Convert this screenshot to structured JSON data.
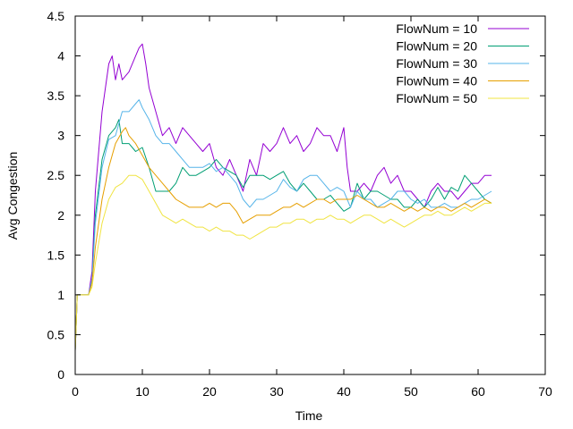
{
  "chart_data": {
    "type": "line",
    "title": "",
    "xlabel": "Time",
    "ylabel": "Avg Congestion",
    "xlim": [
      0,
      70
    ],
    "ylim": [
      0,
      4.5
    ],
    "x_ticks": [
      0,
      10,
      20,
      30,
      40,
      50,
      60,
      70
    ],
    "y_ticks": [
      0,
      0.5,
      1,
      1.5,
      2,
      2.5,
      3,
      3.5,
      4,
      4.5
    ],
    "x_tick_labels": [
      "0",
      "10",
      "20",
      "30",
      "40",
      "50",
      "60",
      "70"
    ],
    "y_tick_labels": [
      "0",
      "0.5",
      "1",
      "1.5",
      "2",
      "2.5",
      "3",
      "3.5",
      "4",
      "4.5"
    ],
    "grid": false,
    "legend_position": "top-right",
    "series": [
      {
        "name": "FlowNum = 10",
        "color": "#9400d3",
        "x": [
          0,
          0.3,
          2,
          2.5,
          3,
          4,
          5,
          5.5,
          6,
          6.5,
          7,
          8,
          9,
          9.5,
          10,
          10.5,
          11,
          12,
          13,
          14,
          15,
          16,
          17,
          18,
          19,
          20,
          21,
          22,
          23,
          24,
          25,
          26,
          27,
          28,
          29,
          30,
          31,
          32,
          33,
          34,
          35,
          36,
          37,
          38,
          39,
          40,
          40.5,
          41,
          42,
          43,
          44,
          45,
          46,
          47,
          48,
          49,
          50,
          51,
          52,
          53,
          54,
          55,
          56,
          57,
          58,
          59,
          60,
          61,
          62
        ],
        "y": [
          0.3,
          1.0,
          1.0,
          1.3,
          2.3,
          3.3,
          3.9,
          4.0,
          3.7,
          3.9,
          3.7,
          3.8,
          4.0,
          4.1,
          4.15,
          3.9,
          3.6,
          3.3,
          3.0,
          3.1,
          2.9,
          3.1,
          3.0,
          2.9,
          2.8,
          2.9,
          2.6,
          2.5,
          2.7,
          2.5,
          2.3,
          2.7,
          2.5,
          2.9,
          2.8,
          2.9,
          3.1,
          2.9,
          3.0,
          2.8,
          2.9,
          3.1,
          3.0,
          3.0,
          2.8,
          3.1,
          2.6,
          2.3,
          2.3,
          2.4,
          2.3,
          2.5,
          2.6,
          2.4,
          2.5,
          2.3,
          2.3,
          2.2,
          2.1,
          2.3,
          2.4,
          2.3,
          2.3,
          2.2,
          2.3,
          2.4,
          2.4,
          2.5,
          2.5
        ]
      },
      {
        "name": "FlowNum = 20",
        "color": "#009e73",
        "x": [
          0,
          0.3,
          2,
          2.5,
          3,
          4,
          5,
          6,
          6.5,
          7,
          8,
          9,
          10,
          11,
          12,
          13,
          14,
          15,
          16,
          17,
          18,
          19,
          20,
          21,
          22,
          23,
          24,
          25,
          26,
          27,
          28,
          29,
          30,
          31,
          32,
          33,
          34,
          35,
          36,
          37,
          38,
          39,
          40,
          41,
          42,
          43,
          44,
          45,
          46,
          47,
          48,
          49,
          50,
          51,
          52,
          53,
          54,
          55,
          56,
          57,
          58,
          59,
          60,
          61,
          62
        ],
        "y": [
          0.3,
          1.0,
          1.0,
          1.2,
          2.0,
          2.7,
          3.0,
          3.1,
          3.2,
          2.9,
          2.9,
          2.8,
          2.85,
          2.6,
          2.3,
          2.3,
          2.3,
          2.4,
          2.6,
          2.5,
          2.5,
          2.55,
          2.6,
          2.7,
          2.6,
          2.55,
          2.5,
          2.35,
          2.5,
          2.5,
          2.5,
          2.45,
          2.5,
          2.55,
          2.4,
          2.3,
          2.4,
          2.3,
          2.2,
          2.2,
          2.25,
          2.15,
          2.05,
          2.1,
          2.4,
          2.2,
          2.3,
          2.3,
          2.25,
          2.2,
          2.2,
          2.1,
          2.1,
          2.2,
          2.1,
          2.2,
          2.35,
          2.2,
          2.35,
          2.3,
          2.5,
          2.4,
          2.3,
          2.2,
          2.15
        ]
      },
      {
        "name": "FlowNum = 30",
        "color": "#56b4e9",
        "x": [
          0,
          0.3,
          2,
          2.5,
          3,
          4,
          5,
          6,
          7,
          8,
          9,
          9.5,
          10,
          11,
          12,
          13,
          14,
          15,
          16,
          17,
          18,
          19,
          20,
          21,
          22,
          23,
          24,
          25,
          26,
          27,
          28,
          29,
          30,
          31,
          32,
          33,
          34,
          35,
          36,
          37,
          38,
          39,
          40,
          41,
          42,
          43,
          44,
          45,
          46,
          47,
          48,
          49,
          50,
          51,
          52,
          53,
          54,
          55,
          56,
          57,
          58,
          59,
          60,
          61,
          62
        ],
        "y": [
          0.3,
          1.0,
          1.0,
          1.2,
          1.9,
          2.6,
          2.95,
          3.0,
          3.3,
          3.3,
          3.4,
          3.45,
          3.35,
          3.2,
          3.0,
          2.9,
          2.9,
          2.8,
          2.7,
          2.6,
          2.6,
          2.6,
          2.65,
          2.55,
          2.6,
          2.5,
          2.4,
          2.2,
          2.1,
          2.2,
          2.2,
          2.25,
          2.3,
          2.45,
          2.35,
          2.3,
          2.45,
          2.5,
          2.5,
          2.4,
          2.3,
          2.35,
          2.3,
          2.1,
          2.3,
          2.2,
          2.2,
          2.1,
          2.15,
          2.2,
          2.3,
          2.3,
          2.2,
          2.15,
          2.2,
          2.1,
          2.1,
          2.15,
          2.1,
          2.1,
          2.15,
          2.2,
          2.2,
          2.25,
          2.3
        ]
      },
      {
        "name": "FlowNum = 40",
        "color": "#e69f00",
        "x": [
          0,
          0.3,
          2,
          2.5,
          3,
          4,
          5,
          6,
          7,
          7.5,
          8,
          9,
          10,
          11,
          12,
          13,
          14,
          15,
          16,
          17,
          18,
          19,
          20,
          21,
          22,
          23,
          24,
          25,
          26,
          27,
          28,
          29,
          30,
          31,
          32,
          33,
          34,
          35,
          36,
          37,
          38,
          39,
          40,
          41,
          42,
          43,
          44,
          45,
          46,
          47,
          48,
          49,
          50,
          51,
          52,
          53,
          54,
          55,
          56,
          57,
          58,
          59,
          60,
          61,
          62
        ],
        "y": [
          0.3,
          1.0,
          1.0,
          1.15,
          1.6,
          2.2,
          2.6,
          2.9,
          3.05,
          3.1,
          3.0,
          2.9,
          2.75,
          2.6,
          2.5,
          2.4,
          2.3,
          2.2,
          2.15,
          2.1,
          2.1,
          2.1,
          2.15,
          2.1,
          2.15,
          2.15,
          2.05,
          1.9,
          1.95,
          2.0,
          2.0,
          2.0,
          2.05,
          2.1,
          2.1,
          2.15,
          2.1,
          2.15,
          2.2,
          2.2,
          2.15,
          2.2,
          2.2,
          2.2,
          2.25,
          2.2,
          2.15,
          2.1,
          2.1,
          2.15,
          2.1,
          2.05,
          2.1,
          2.05,
          2.1,
          2.05,
          2.1,
          2.1,
          2.05,
          2.1,
          2.15,
          2.1,
          2.15,
          2.2,
          2.15
        ]
      },
      {
        "name": "FlowNum = 50",
        "color": "#f0e442",
        "x": [
          0,
          0.3,
          2,
          2.5,
          3,
          4,
          5,
          6,
          7,
          8,
          9,
          10,
          11,
          12,
          13,
          14,
          15,
          16,
          17,
          18,
          19,
          20,
          21,
          22,
          23,
          24,
          25,
          26,
          27,
          28,
          29,
          30,
          31,
          32,
          33,
          34,
          35,
          36,
          37,
          38,
          39,
          40,
          41,
          42,
          43,
          44,
          45,
          46,
          47,
          48,
          49,
          50,
          51,
          52,
          53,
          54,
          55,
          56,
          57,
          58,
          59,
          60,
          61,
          62
        ],
        "y": [
          0.3,
          1.0,
          1.0,
          1.1,
          1.4,
          1.9,
          2.2,
          2.35,
          2.4,
          2.5,
          2.5,
          2.45,
          2.3,
          2.15,
          2.0,
          1.95,
          1.9,
          1.95,
          1.9,
          1.85,
          1.85,
          1.8,
          1.85,
          1.8,
          1.8,
          1.75,
          1.75,
          1.7,
          1.75,
          1.8,
          1.85,
          1.85,
          1.9,
          1.9,
          1.95,
          1.95,
          1.9,
          1.95,
          1.95,
          2.0,
          1.95,
          1.95,
          1.9,
          1.95,
          2.0,
          2.0,
          1.95,
          1.9,
          1.95,
          1.9,
          1.85,
          1.9,
          1.95,
          2.0,
          2.0,
          2.05,
          2.0,
          2.0,
          2.05,
          2.1,
          2.05,
          2.1,
          2.15,
          2.15
        ]
      }
    ]
  }
}
